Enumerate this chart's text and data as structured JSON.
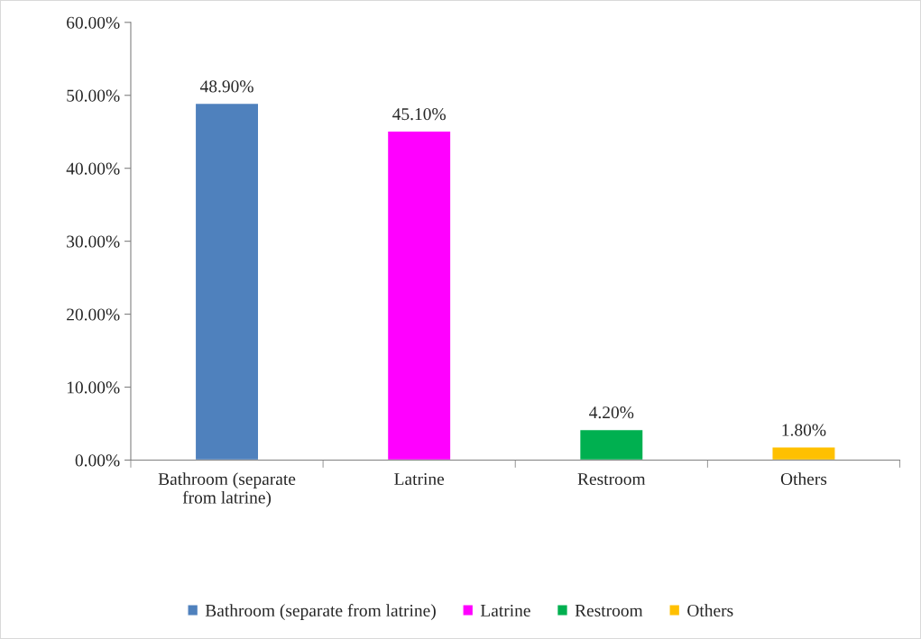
{
  "chart_data": {
    "type": "bar",
    "categories": [
      "Bathroom (separate\nfrom latrine)",
      "Latrine",
      "Restroom",
      "Others"
    ],
    "series": [
      {
        "name": "Bathroom (separate from latrine)",
        "color": "#4f81bd",
        "values": [
          48.9,
          null,
          null,
          null
        ],
        "value_labels": [
          "48.90%",
          null,
          null,
          null
        ]
      },
      {
        "name": "Latrine",
        "color": "#ff00ff",
        "values": [
          null,
          45.1,
          null,
          null
        ],
        "value_labels": [
          null,
          "45.10%",
          null,
          null
        ]
      },
      {
        "name": "Restroom",
        "color": "#00b050",
        "values": [
          null,
          null,
          4.2,
          null
        ],
        "value_labels": [
          null,
          null,
          "4.20%",
          null
        ]
      },
      {
        "name": "Others",
        "color": "#ffc000",
        "values": [
          null,
          null,
          null,
          1.8
        ],
        "value_labels": [
          null,
          null,
          null,
          "1.80%"
        ]
      }
    ],
    "ylim": [
      0,
      60
    ],
    "yticks": [
      {
        "value": 0,
        "label": "0.00%"
      },
      {
        "value": 10,
        "label": "10.00%"
      },
      {
        "value": 20,
        "label": "20.00%"
      },
      {
        "value": 30,
        "label": "30.00%"
      },
      {
        "value": 40,
        "label": "40.00%"
      },
      {
        "value": 50,
        "label": "50.00%"
      },
      {
        "value": 60,
        "label": "60.00%"
      }
    ],
    "legend": "bottom",
    "grid": false
  }
}
